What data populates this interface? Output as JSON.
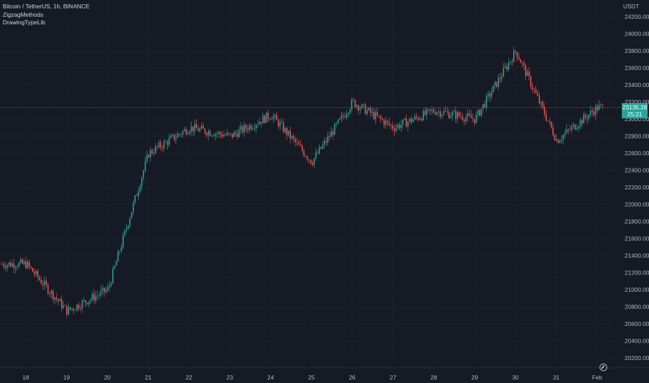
{
  "legend": {
    "symbol": "Bitcoin / TetherUS, 1h, BINANCE",
    "indicator_1": "ZigzagMethods",
    "indicator_2": "DrawingTypeLib"
  },
  "currency": "USDT",
  "last_price": {
    "value": "23135.28",
    "countdown": "25:21",
    "price": 23135.28,
    "color": "#26a69a"
  },
  "colors": {
    "up": "#26a69a",
    "down": "#ef5350",
    "background": "#161a25",
    "grid": "#232632"
  },
  "chart_data": {
    "type": "candlestick",
    "title": "",
    "xlabel": "",
    "ylabel": "",
    "ylim": [
      20100,
      24300
    ],
    "y_ticks": [
      "20200.00",
      "20400.00",
      "20600.00",
      "20800.00",
      "21000.00",
      "21200.00",
      "21400.00",
      "21600.00",
      "21800.00",
      "22000.00",
      "22200.00",
      "22400.00",
      "22600.00",
      "22800.00",
      "23000.00",
      "23200.00",
      "23400.00",
      "23600.00",
      "23800.00",
      "24000.00",
      "24200.00"
    ],
    "x_ticks": [
      "18",
      "19",
      "20",
      "21",
      "22",
      "23",
      "24",
      "25",
      "26",
      "27",
      "28",
      "29",
      "30",
      "31",
      "Feb"
    ],
    "grid": true,
    "days": [
      {
        "label": "18",
        "price": 21300
      },
      {
        "label": "19",
        "price": 20750
      },
      {
        "label": "20",
        "price": 21000
      },
      {
        "label": "21",
        "price": 22600
      },
      {
        "label": "22",
        "price": 22900
      },
      {
        "label": "23",
        "price": 22800
      },
      {
        "label": "24",
        "price": 23050
      },
      {
        "label": "25",
        "price": 22500
      },
      {
        "label": "26",
        "price": 23200
      },
      {
        "label": "27",
        "price": 22900
      },
      {
        "label": "28",
        "price": 23100
      },
      {
        "label": "29",
        "price": 23000
      },
      {
        "label": "30",
        "price": 23800
      },
      {
        "label": "31",
        "price": 22750
      },
      {
        "label": "Feb",
        "price": 23135.28
      }
    ]
  }
}
